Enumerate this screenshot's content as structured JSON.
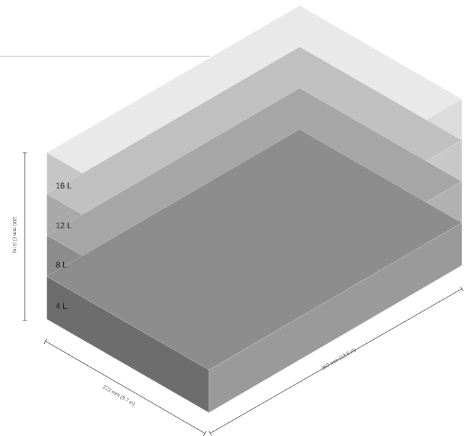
{
  "levels": [
    {
      "label": "4 L",
      "top": "#8d8d8d",
      "left": "#6d6d6d",
      "right": "#9a9a9a"
    },
    {
      "label": "8 L",
      "top": "#a6a6a6",
      "left": "#8c8c8c",
      "right": "#b1b1b1"
    },
    {
      "label": "12 L",
      "top": "#c0c0c0",
      "left": "#a9a9a9",
      "right": "#c8c8c8"
    },
    {
      "label": "16 L",
      "top": "#e9e9e9",
      "left": "#c6c6c6",
      "right": "#dcdcdc"
    }
  ],
  "dimensions": {
    "height": "200 mm (7.9 in)",
    "depth": "222 mm (8.7 in)",
    "width": "350 mm (13.8 in)"
  },
  "colors": {
    "dimension_line": "#444444",
    "top_rule": "#999999"
  }
}
